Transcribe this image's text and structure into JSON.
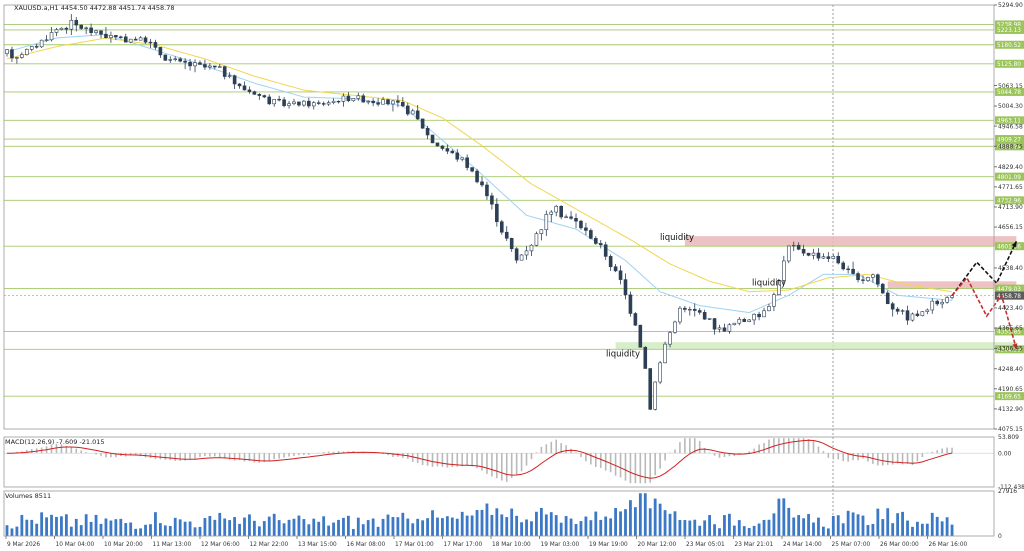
{
  "header": {
    "symbol_info": "XAUUSD.a,H1  4454.50 4472.88 4451.74 4458.78"
  },
  "colors": {
    "background": "#ffffff",
    "grid": "#d0d0d0",
    "axis": "#555555",
    "candle": "#2d3f55",
    "ma_fast": "#9fd2f2",
    "ma_slow": "#f2d550",
    "level_line": "#a3c96b",
    "level_label_bg": "#9bc45a",
    "current_label_bg": "#5c5c5c",
    "zone_red": "#eab7b7",
    "zone_green": "#d1eac1",
    "arrow_up": "#111111",
    "arrow_down": "#c03030",
    "macd_hist": "#b9b9b9",
    "macd_signal": "#d11f1f",
    "volume": "#3b78c5"
  },
  "chart_data": [
    {
      "type": "candlestick",
      "panel": "price",
      "title": "XAUUSD.a,H1",
      "ohlc_readout": {
        "open": 4454.5,
        "high": 4472.88,
        "low": 4451.74,
        "close": 4458.78
      },
      "ylim": [
        4075.15,
        5294.9
      ],
      "y_ticks": [
        5294.9,
        5063.15,
        5004.3,
        4946.58,
        4888.75,
        4829.4,
        4771.65,
        4713.9,
        4656.15,
        4538.4,
        4423.4,
        4365.65,
        4306.95,
        4248.4,
        4190.65,
        4132.9,
        4075.15
      ],
      "x_ticks": [
        "9 Mar 2026",
        "10 Mar 04:00",
        "10 Mar 20:00",
        "11 Mar 13:00",
        "12 Mar 06:00",
        "12 Mar 22:00",
        "13 Mar 15:00",
        "16 Mar 08:00",
        "17 Mar 01:00",
        "17 Mar 17:00",
        "18 Mar 10:00",
        "19 Mar 03:00",
        "19 Mar 19:00",
        "20 Mar 12:00",
        "23 Mar 05:01",
        "23 Mar 21:01",
        "24 Mar 14:00",
        "25 Mar 07:00",
        "26 Mar 00:00",
        "26 Mar 16:00"
      ],
      "path": [
        [
          0,
          5155
        ],
        [
          2,
          5150
        ],
        [
          6,
          5180
        ],
        [
          10,
          5225
        ],
        [
          13,
          5240
        ],
        [
          16,
          5225
        ],
        [
          22,
          5200
        ],
        [
          28,
          5195
        ],
        [
          32,
          5140
        ],
        [
          38,
          5120
        ],
        [
          43,
          5110
        ],
        [
          47,
          5060
        ],
        [
          55,
          5010
        ],
        [
          63,
          5010
        ],
        [
          70,
          5030
        ],
        [
          78,
          5010
        ],
        [
          82,
          4985
        ],
        [
          86,
          4900
        ],
        [
          92,
          4850
        ],
        [
          96,
          4780
        ],
        [
          100,
          4650
        ],
        [
          103,
          4560
        ],
        [
          106,
          4610
        ],
        [
          110,
          4710
        ],
        [
          115,
          4670
        ],
        [
          120,
          4600
        ],
        [
          124,
          4500
        ],
        [
          127,
          4380
        ],
        [
          129,
          4250
        ],
        [
          130,
          4140
        ],
        [
          131,
          4210
        ],
        [
          133,
          4320
        ],
        [
          136,
          4420
        ],
        [
          140,
          4410
        ],
        [
          144,
          4360
        ],
        [
          148,
          4385
        ],
        [
          152,
          4400
        ],
        [
          155,
          4460
        ],
        [
          158,
          4600
        ],
        [
          162,
          4580
        ],
        [
          167,
          4570
        ],
        [
          172,
          4500
        ],
        [
          175,
          4520
        ],
        [
          178,
          4440
        ],
        [
          182,
          4400
        ],
        [
          185,
          4410
        ],
        [
          188,
          4440
        ],
        [
          191,
          4459
        ]
      ],
      "moving_averages": [
        {
          "path": [
            [
              0,
              5160
            ],
            [
              10,
              5200
            ],
            [
              20,
              5210
            ],
            [
              30,
              5165
            ],
            [
              40,
              5120
            ],
            [
              50,
              5070
            ],
            [
              60,
              5030
            ],
            [
              70,
              5025
            ],
            [
              80,
              5005
            ],
            [
              86,
              4930
            ],
            [
              95,
              4820
            ],
            [
              105,
              4690
            ],
            [
              115,
              4650
            ],
            [
              125,
              4560
            ],
            [
              132,
              4470
            ],
            [
              140,
              4430
            ],
            [
              150,
              4410
            ],
            [
              158,
              4460
            ],
            [
              165,
              4520
            ],
            [
              172,
              4520
            ],
            [
              180,
              4460
            ],
            [
              191,
              4445
            ]
          ]
        },
        {
          "path": [
            [
              0,
              5140
            ],
            [
              10,
              5175
            ],
            [
              20,
              5200
            ],
            [
              30,
              5180
            ],
            [
              40,
              5140
            ],
            [
              50,
              5090
            ],
            [
              60,
              5050
            ],
            [
              70,
              5035
            ],
            [
              80,
              5020
            ],
            [
              88,
              4970
            ],
            [
              96,
              4890
            ],
            [
              106,
              4780
            ],
            [
              116,
              4700
            ],
            [
              126,
              4620
            ],
            [
              134,
              4550
            ],
            [
              142,
              4500
            ],
            [
              150,
              4470
            ],
            [
              158,
              4475
            ],
            [
              166,
              4510
            ],
            [
              174,
              4520
            ],
            [
              182,
              4490
            ],
            [
              191,
              4470
            ]
          ]
        }
      ],
      "price_levels": [
        5238.98,
        5223.13,
        5180.52,
        5125.8,
        5044.78,
        4963.11,
        4909.27,
        4888.24,
        4801.09,
        4732.96,
        4601.06,
        4479.03,
        4355.85,
        4304.39,
        4169.65
      ],
      "current_price": 4458.78,
      "zones": [
        {
          "label": "liquidity",
          "low": 4601.06,
          "high": 4630
        },
        {
          "label": "liquidity",
          "low": 4479.03,
          "high": 4500
        },
        {
          "label": "liquidity",
          "low": 4304.39,
          "high": 4325
        }
      ],
      "forecast_up": [
        [
          191,
          4459
        ],
        [
          196,
          4555
        ],
        [
          200,
          4495
        ],
        [
          204,
          4615
        ]
      ],
      "forecast_down": [
        [
          191,
          4459
        ],
        [
          194,
          4510
        ],
        [
          198,
          4400
        ],
        [
          201,
          4460
        ],
        [
          204,
          4305
        ]
      ]
    },
    {
      "type": "histogram_line",
      "panel": "macd",
      "title": "MACD(12,26,9) -7.609 -21.015",
      "ylim": [
        -112.438,
        53.809
      ],
      "y_ticks": [
        53.809,
        0.0,
        -112.438
      ]
    },
    {
      "type": "bar",
      "panel": "volume",
      "title": "Volumes 8511",
      "ylim": [
        0,
        27916
      ],
      "y_ticks": [
        27916,
        0
      ]
    }
  ]
}
